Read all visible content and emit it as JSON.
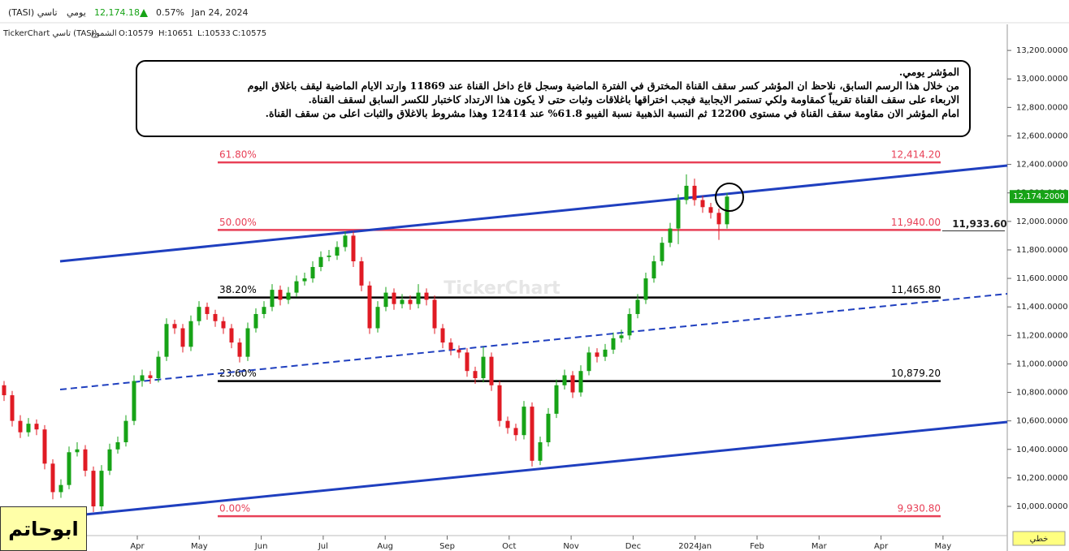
{
  "header": {
    "name": "(TASI) تاسي",
    "period": "يومي",
    "price": "12,174.18",
    "change": "0.57%",
    "date": "Jan 24, 2024",
    "source": "TickerChart تاسي (TASI)",
    "style": "الشموع",
    "open": "O:10579",
    "high": "H:10651",
    "low": "L:10533",
    "close": "C:10575"
  },
  "note": {
    "lines": [
      "المؤشر يومي.",
      "من خلال هذا الرسم السابق، نلاحظ ان المؤشر كسر سقف القناة المخترق في الفترة الماضية وسجل قاع داخل القناة عند 11869 وارتد الايام الماضية ليقف باغلاق اليوم",
      "الاربعاء على سقف القناة تقريباً كمقاومة ولكي تستمر الايجابية فيجب اختراقها باغلاقات وثبات حتى لا يكون هذا الارتداد كاختبار للكسر السابق لسقف القناة.",
      "امام المؤشر الان مقاومة سقف القناة في مستوى 12200 ثم النسبة الذهبية نسبة الفيبو 61.8% عند 12414 وهذا مشروط بالاغلاق والثبات اعلى من سقف القناة."
    ]
  },
  "signature": "ابوحاتم",
  "chart_data": {
    "type": "candlestick",
    "watermark": "TickerChart",
    "scale_mode": "خطي",
    "x_labels": [
      "Apr",
      "May",
      "Jun",
      "Jul",
      "Aug",
      "Sep",
      "Oct",
      "Nov",
      "Dec",
      "2024Jan",
      "Feb",
      "Mar",
      "Apr",
      "May"
    ],
    "up_color": "#17a317",
    "down_color": "#e01b24",
    "ylim": [
      9795,
      13383
    ],
    "yticks": [
      {
        "value": 10000,
        "label": "10,000.0000"
      },
      {
        "value": 10200,
        "label": "10,200.0000"
      },
      {
        "value": 10400,
        "label": "10,400.0000"
      },
      {
        "value": 10600,
        "label": "10,600.0000"
      },
      {
        "value": 10800,
        "label": "10,800.0000"
      },
      {
        "value": 11000,
        "label": "11,000.0000"
      },
      {
        "value": 11200,
        "label": "11,200.0000"
      },
      {
        "value": 11400,
        "label": "11,400.0000"
      },
      {
        "value": 11600,
        "label": "11,600.0000"
      },
      {
        "value": 11800,
        "label": "11,800.0000"
      },
      {
        "value": 12000,
        "label": "12,000.0000"
      },
      {
        "value": 12200,
        "label": "12,200.0000"
      },
      {
        "value": 12400,
        "label": "12,400.0000"
      },
      {
        "value": 12600,
        "label": "12,600.0000"
      },
      {
        "value": 12800,
        "label": "12,800.0000"
      },
      {
        "value": 13000,
        "label": "13,000.0000"
      },
      {
        "value": 13200,
        "label": "13,200.0000"
      }
    ],
    "last_price": {
      "value": 12174.2,
      "label": "12,174.2000"
    },
    "marker": {
      "value": 11933.6,
      "label": "11,933.60"
    },
    "fib_levels": [
      {
        "pct": {
          "value": 61.8,
          "label": "61.80%"
        },
        "price": {
          "value": 12414.2,
          "label": "12,414.20"
        },
        "color": "#e84057"
      },
      {
        "pct": {
          "value": 50,
          "label": "50.00%"
        },
        "price": {
          "value": 11940,
          "label": "11,940.00"
        },
        "color": "#e84057"
      },
      {
        "pct": {
          "value": 38.2,
          "label": "38.20%"
        },
        "price": {
          "value": 11465.8,
          "label": "11,465.80"
        },
        "color": "#000000"
      },
      {
        "pct": {
          "value": 23.6,
          "label": "23.60%"
        },
        "price": {
          "value": 10879.2,
          "label": "10,879.20"
        },
        "color": "#000000"
      },
      {
        "pct": {
          "value": 0,
          "label": "0.00%"
        },
        "price": {
          "value": 9930.8,
          "label": "9,930.80"
        },
        "color": "#e84057"
      }
    ],
    "ohlc": [
      [
        10850,
        10880,
        10740,
        10780
      ],
      [
        10780,
        10810,
        10560,
        10600
      ],
      [
        10600,
        10640,
        10480,
        10520
      ],
      [
        10520,
        10620,
        10490,
        10580
      ],
      [
        10580,
        10610,
        10500,
        10540
      ],
      [
        10540,
        10570,
        10260,
        10300
      ],
      [
        10300,
        10330,
        10050,
        10100
      ],
      [
        10100,
        10190,
        10060,
        10150
      ],
      [
        10150,
        10420,
        10120,
        10380
      ],
      [
        10380,
        10450,
        10350,
        10400
      ],
      [
        10400,
        10430,
        10210,
        10250
      ],
      [
        10250,
        10280,
        9960,
        10000
      ],
      [
        10000,
        10290,
        9970,
        10250
      ],
      [
        10250,
        10440,
        10220,
        10400
      ],
      [
        10400,
        10490,
        10370,
        10450
      ],
      [
        10450,
        10640,
        10420,
        10600
      ],
      [
        10600,
        10920,
        10570,
        10880
      ],
      [
        10880,
        10960,
        10840,
        10920
      ],
      [
        10920,
        10950,
        10860,
        10900
      ],
      [
        10900,
        11090,
        10870,
        11050
      ],
      [
        11050,
        11320,
        11020,
        11280
      ],
      [
        11280,
        11310,
        11210,
        11250
      ],
      [
        11250,
        11280,
        11080,
        11120
      ],
      [
        11120,
        11340,
        11090,
        11300
      ],
      [
        11300,
        11440,
        11270,
        11400
      ],
      [
        11400,
        11430,
        11310,
        11350
      ],
      [
        11350,
        11380,
        11260,
        11300
      ],
      [
        11300,
        11330,
        11210,
        11250
      ],
      [
        11250,
        11280,
        11110,
        11150
      ],
      [
        11150,
        11180,
        11010,
        11050
      ],
      [
        11050,
        11290,
        11020,
        11250
      ],
      [
        11250,
        11390,
        11220,
        11350
      ],
      [
        11350,
        11440,
        11320,
        11400
      ],
      [
        11400,
        11560,
        11370,
        11520
      ],
      [
        11520,
        11550,
        11410,
        11450
      ],
      [
        11450,
        11540,
        11420,
        11500
      ],
      [
        11500,
        11620,
        11470,
        11580
      ],
      [
        11580,
        11640,
        11550,
        11600
      ],
      [
        11600,
        11720,
        11570,
        11680
      ],
      [
        11680,
        11790,
        11650,
        11750
      ],
      [
        11750,
        11800,
        11720,
        11760
      ],
      [
        11760,
        11860,
        11730,
        11820
      ],
      [
        11820,
        11930,
        11790,
        11900
      ],
      [
        11900,
        11930,
        11680,
        11720
      ],
      [
        11720,
        11750,
        11510,
        11550
      ],
      [
        11550,
        11580,
        11210,
        11250
      ],
      [
        11250,
        11440,
        11220,
        11400
      ],
      [
        11400,
        11540,
        11370,
        11500
      ],
      [
        11500,
        11530,
        11380,
        11420
      ],
      [
        11420,
        11490,
        11390,
        11450
      ],
      [
        11450,
        11480,
        11380,
        11420
      ],
      [
        11420,
        11560,
        11390,
        11500
      ],
      [
        11500,
        11530,
        11410,
        11450
      ],
      [
        11450,
        11480,
        11210,
        11250
      ],
      [
        11250,
        11280,
        11110,
        11150
      ],
      [
        11150,
        11180,
        11060,
        11100
      ],
      [
        11100,
        11130,
        11040,
        11080
      ],
      [
        11080,
        11110,
        10910,
        10950
      ],
      [
        10950,
        10980,
        10860,
        10900
      ],
      [
        10900,
        11120,
        10870,
        11050
      ],
      [
        11050,
        11080,
        10810,
        10850
      ],
      [
        10850,
        10880,
        10560,
        10600
      ],
      [
        10600,
        10630,
        10510,
        10550
      ],
      [
        10550,
        10580,
        10460,
        10500
      ],
      [
        10500,
        10740,
        10470,
        10700
      ],
      [
        10700,
        10730,
        10280,
        10320
      ],
      [
        10320,
        10490,
        10290,
        10450
      ],
      [
        10450,
        10690,
        10420,
        10650
      ],
      [
        10650,
        10890,
        10620,
        10850
      ],
      [
        10850,
        10960,
        10820,
        10920
      ],
      [
        10920,
        10950,
        10760,
        10800
      ],
      [
        10800,
        10990,
        10770,
        10950
      ],
      [
        10950,
        11120,
        10920,
        11080
      ],
      [
        11080,
        11110,
        11010,
        11050
      ],
      [
        11050,
        11140,
        11020,
        11100
      ],
      [
        11100,
        11220,
        11070,
        11180
      ],
      [
        11180,
        11240,
        11150,
        11200
      ],
      [
        11200,
        11390,
        11170,
        11350
      ],
      [
        11350,
        11490,
        11320,
        11450
      ],
      [
        11450,
        11640,
        11420,
        11600
      ],
      [
        11600,
        11760,
        11570,
        11720
      ],
      [
        11720,
        11890,
        11690,
        11850
      ],
      [
        11850,
        11990,
        11820,
        11950
      ],
      [
        11950,
        12190,
        11840,
        12150
      ],
      [
        12150,
        12330,
        12120,
        12250
      ],
      [
        12250,
        12300,
        12110,
        12150
      ],
      [
        12150,
        12180,
        12060,
        12100
      ],
      [
        12100,
        12130,
        12020,
        12060
      ],
      [
        12060,
        12090,
        11870,
        11980
      ],
      [
        11980,
        12200,
        11950,
        12174.18
      ]
    ]
  }
}
